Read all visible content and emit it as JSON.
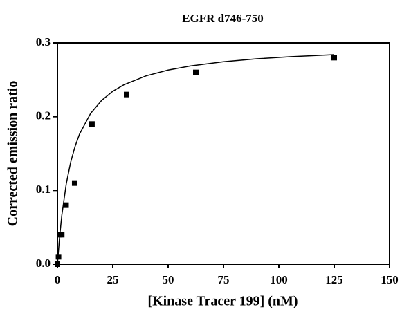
{
  "chart_data": {
    "type": "scatter",
    "title": "EGFR d746-750",
    "x_label": "[Kinase Tracer 199] (nM)",
    "y_label": "Corrected emission ratio",
    "series": [
      {
        "type": "scatter",
        "color": "#000000",
        "x": [
          0,
          0.49,
          0.98,
          1.95,
          3.9,
          7.8,
          15.6,
          31.25,
          62.5,
          125
        ],
        "values": [
          0.0,
          0.01,
          0.04,
          0.04,
          0.08,
          0.11,
          0.19,
          0.23,
          0.26,
          0.28
        ]
      },
      {
        "type": "line",
        "color": "#000000",
        "x": [
          0,
          1,
          2,
          4,
          6,
          8,
          10,
          15,
          20,
          25,
          30,
          40,
          50,
          60,
          75,
          90,
          105,
          125
        ],
        "values": [
          0,
          0.0375,
          0.0667,
          0.1091,
          0.1385,
          0.16,
          0.1765,
          0.2045,
          0.2222,
          0.2344,
          0.2432,
          0.2553,
          0.2632,
          0.2687,
          0.2744,
          0.2784,
          0.2813,
          0.2841
        ]
      }
    ],
    "xlim": [
      0,
      150
    ],
    "xticks": [
      0,
      25,
      50,
      75,
      100,
      125,
      150
    ],
    "ylim": [
      0,
      0.3
    ],
    "yticks": [
      {
        "value": 0,
        "label": "0.0"
      },
      0.1,
      0.2,
      0.3
    ],
    "grid": false
  }
}
